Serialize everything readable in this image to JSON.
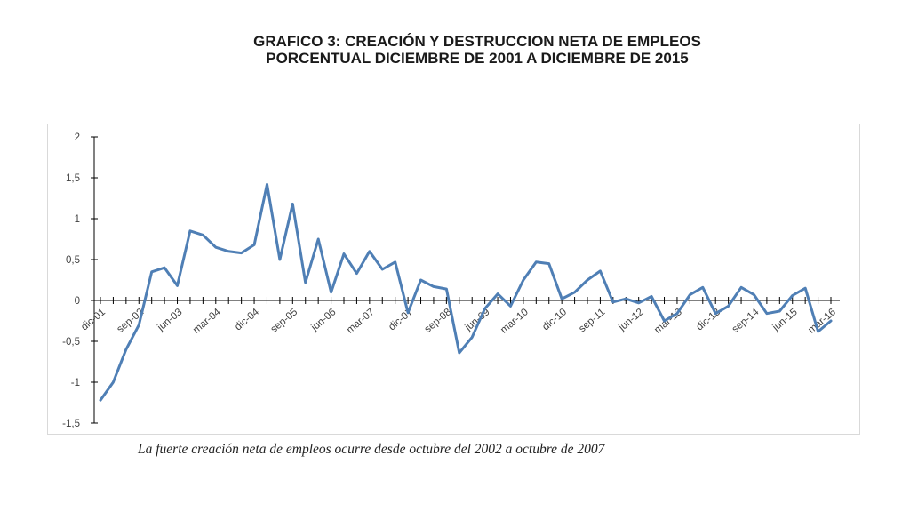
{
  "title_line1": "GRAFICO 3: CREACIÓN Y DESTRUCCION NETA DE EMPLEOS",
  "title_line2": "PORCENTUAL DICIEMBRE DE 2001 A DICIEMBRE DE 2015",
  "caption": "La fuerte creación neta de empleos ocurre desde octubre del 2002 a octubre de 2007",
  "colors": {
    "line": "#4f7fb5",
    "axis": "#000000",
    "text": "#404040"
  },
  "chart_data": {
    "type": "line",
    "ylim": [
      -1.5,
      2
    ],
    "y_ticks": [
      "2",
      "1,5",
      "1",
      "0,5",
      "0",
      "-0,5",
      "-1",
      "-1,5"
    ],
    "y_tick_values": [
      2,
      1.5,
      1,
      0.5,
      0,
      -0.5,
      -1,
      -1.5
    ],
    "x_tick_labels": [
      "dic-01",
      "sep-02",
      "jun-03",
      "mar-04",
      "dic-04",
      "sep-05",
      "jun-06",
      "mar-07",
      "dic-07",
      "sep-08",
      "jun-09",
      "mar-10",
      "dic-10",
      "sep-11",
      "jun-12",
      "mar-13",
      "dic-13",
      "sep-14",
      "jun-15",
      "mar-16"
    ],
    "x_tick_index_step": 3,
    "grid": false,
    "legend": "none",
    "series": [
      {
        "values": [
          -1.22,
          -1.0,
          -0.6,
          -0.3,
          0.35,
          0.4,
          0.18,
          0.85,
          0.8,
          0.65,
          0.6,
          0.58,
          0.68,
          1.42,
          0.5,
          1.18,
          0.22,
          0.75,
          0.1,
          0.57,
          0.33,
          0.6,
          0.38,
          0.47,
          -0.15,
          0.25,
          0.17,
          0.14,
          -0.64,
          -0.45,
          -0.1,
          0.08,
          -0.07,
          0.25,
          0.47,
          0.45,
          0.02,
          0.1,
          0.25,
          0.36,
          -0.02,
          0.02,
          -0.03,
          0.05,
          -0.25,
          -0.16,
          0.07,
          0.16,
          -0.16,
          -0.07,
          0.16,
          0.07,
          -0.16,
          -0.13,
          0.06,
          0.15,
          -0.38,
          -0.25
        ]
      }
    ]
  }
}
